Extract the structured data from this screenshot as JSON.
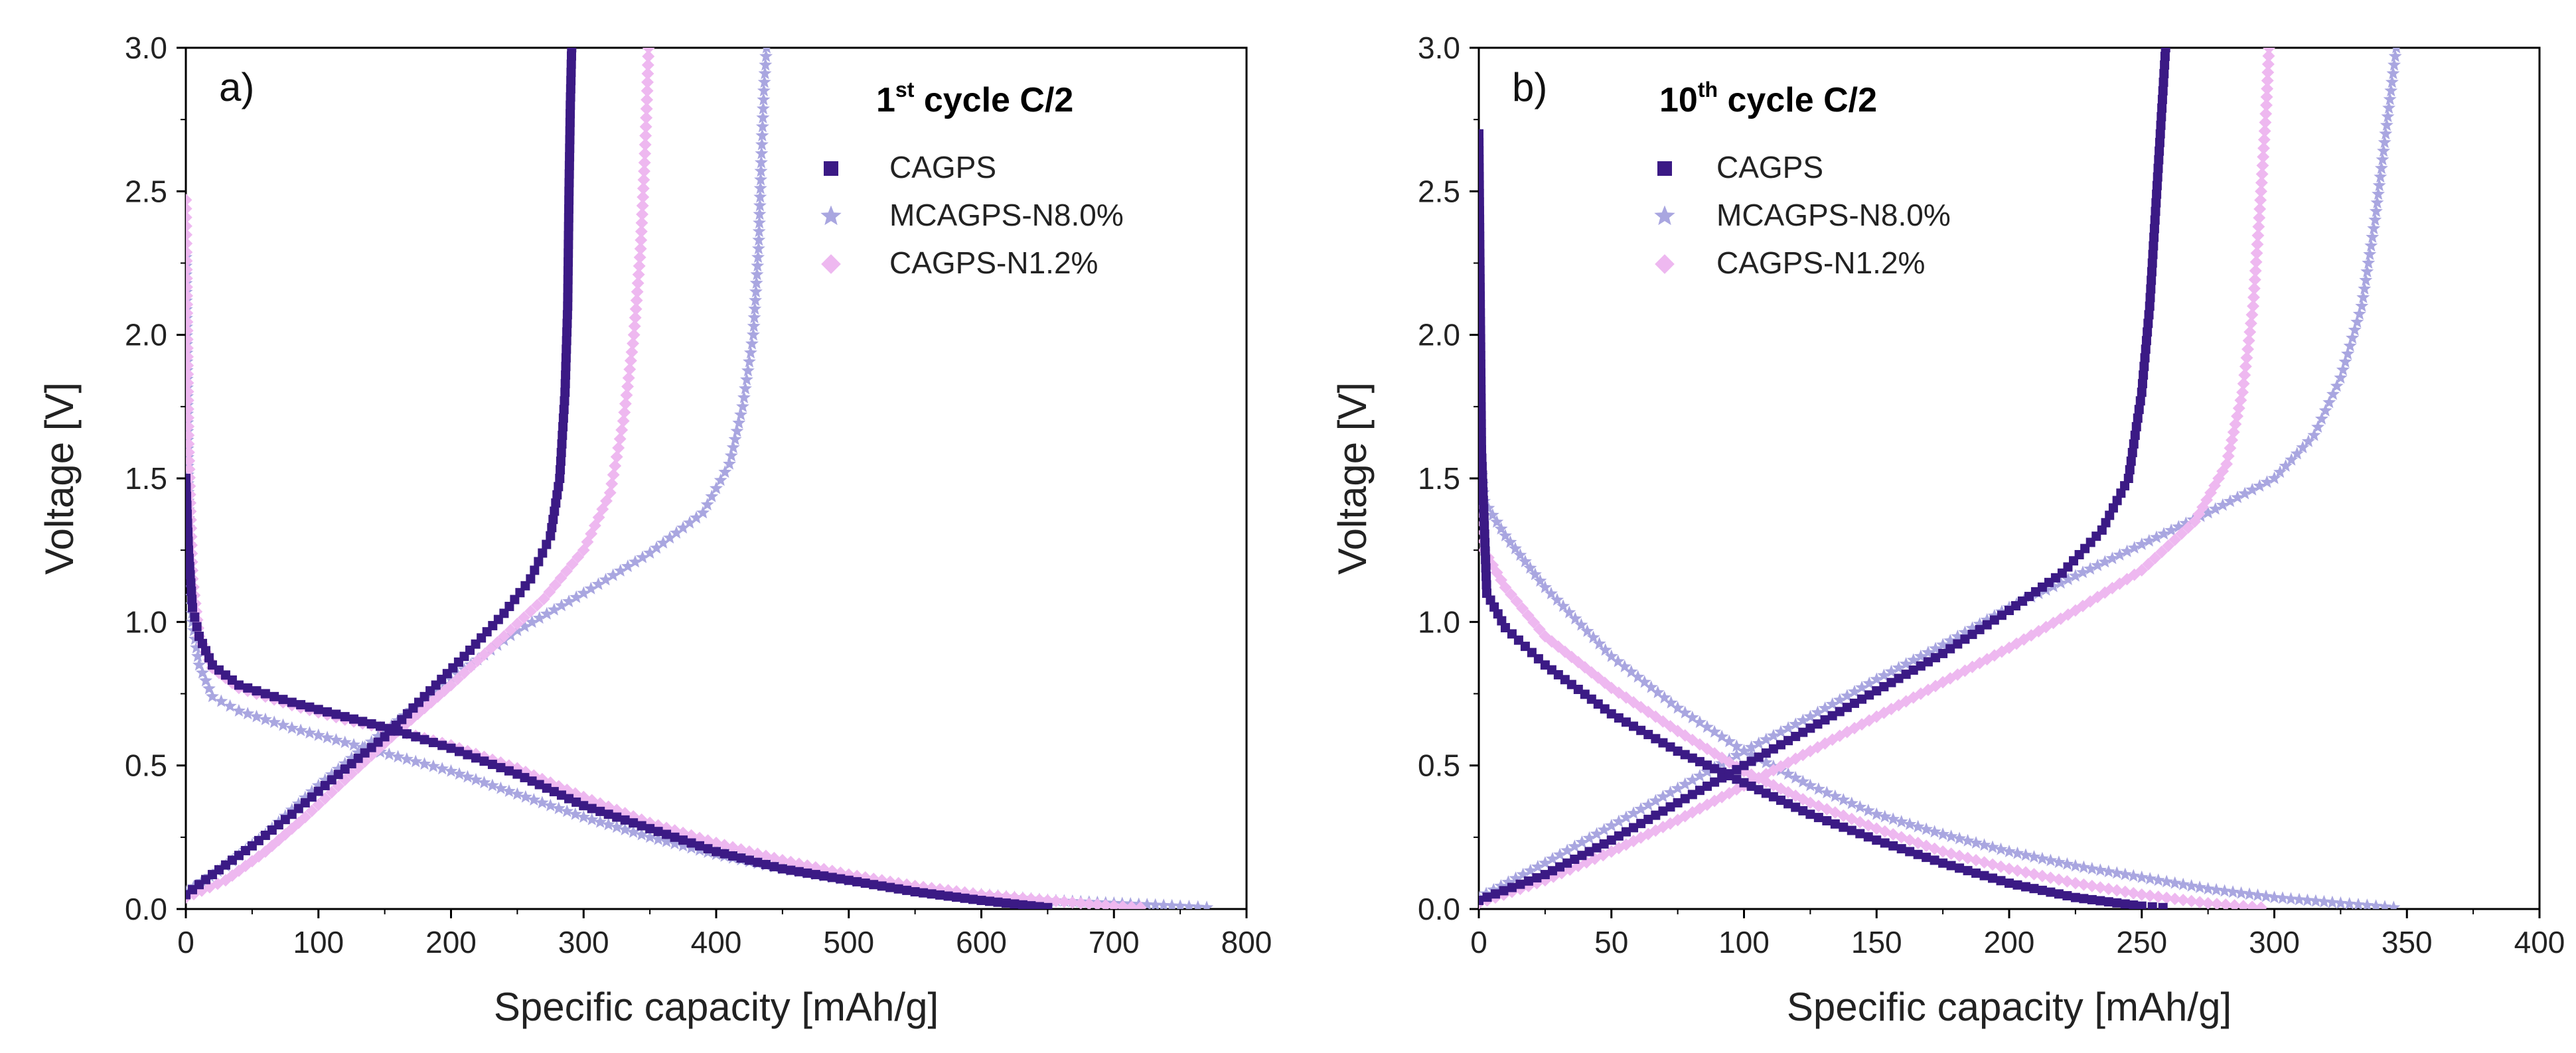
{
  "colors": {
    "CAGPS": "#3b1a85",
    "MCAGPS-N8.0%": "#a9a6e0",
    "CAGPS-N1.2%": "#eeb8f0",
    "axis": "#000000"
  },
  "chart_data": [
    {
      "type": "scatter",
      "panel": "a)",
      "title_prefix": "1",
      "title_sup": "st",
      "title_suffix": " cycle C/2",
      "xlabel": "Specific capacity [mAh/g]",
      "ylabel": "Voltage [V]",
      "xlim": [
        0,
        800
      ],
      "ylim": [
        0,
        3.0
      ],
      "xticks": [
        0,
        100,
        200,
        300,
        400,
        500,
        600,
        700,
        800
      ],
      "yticks": [
        0.0,
        0.5,
        1.0,
        1.5,
        2.0,
        2.5,
        3.0
      ],
      "legend_position": "top-right",
      "series": [
        {
          "name": "CAGPS",
          "marker": "square",
          "discharge": [
            [
              0,
              1.5
            ],
            [
              2,
              1.25
            ],
            [
              5,
              1.05
            ],
            [
              10,
              0.95
            ],
            [
              20,
              0.85
            ],
            [
              40,
              0.78
            ],
            [
              80,
              0.72
            ],
            [
              120,
              0.67
            ],
            [
              160,
              0.62
            ],
            [
              200,
              0.56
            ],
            [
              250,
              0.47
            ],
            [
              300,
              0.36
            ],
            [
              350,
              0.28
            ],
            [
              400,
              0.2
            ],
            [
              450,
              0.14
            ],
            [
              500,
              0.1
            ],
            [
              550,
              0.06
            ],
            [
              600,
              0.03
            ],
            [
              650,
              0.005
            ]
          ],
          "charge": [
            [
              0,
              0.05
            ],
            [
              20,
              0.12
            ],
            [
              50,
              0.22
            ],
            [
              80,
              0.33
            ],
            [
              110,
              0.45
            ],
            [
              150,
              0.6
            ],
            [
              180,
              0.74
            ],
            [
              210,
              0.88
            ],
            [
              240,
              1.03
            ],
            [
              260,
              1.15
            ],
            [
              275,
              1.3
            ],
            [
              282,
              1.5
            ],
            [
              286,
              1.8
            ],
            [
              288,
              2.1
            ],
            [
              289,
              2.5
            ],
            [
              290,
              2.8
            ],
            [
              291,
              3.0
            ]
          ]
        },
        {
          "name": "MCAGPS-N8.0%",
          "marker": "star",
          "discharge": [
            [
              0,
              2.27
            ],
            [
              2,
              1.3
            ],
            [
              5,
              1.0
            ],
            [
              10,
              0.85
            ],
            [
              20,
              0.74
            ],
            [
              40,
              0.69
            ],
            [
              80,
              0.63
            ],
            [
              120,
              0.58
            ],
            [
              160,
              0.53
            ],
            [
              200,
              0.48
            ],
            [
              250,
              0.4
            ],
            [
              300,
              0.32
            ],
            [
              350,
              0.25
            ],
            [
              400,
              0.19
            ],
            [
              450,
              0.14
            ],
            [
              500,
              0.1
            ],
            [
              550,
              0.07
            ],
            [
              600,
              0.05
            ],
            [
              650,
              0.03
            ],
            [
              700,
              0.02
            ],
            [
              750,
              0.01
            ],
            [
              770,
              0.005
            ]
          ],
          "charge": [
            [
              0,
              0.06
            ],
            [
              30,
              0.15
            ],
            [
              60,
              0.26
            ],
            [
              100,
              0.43
            ],
            [
              150,
              0.62
            ],
            [
              200,
              0.8
            ],
            [
              250,
              0.97
            ],
            [
              300,
              1.1
            ],
            [
              350,
              1.24
            ],
            [
              390,
              1.38
            ],
            [
              410,
              1.55
            ],
            [
              420,
              1.75
            ],
            [
              428,
              2.0
            ],
            [
              432,
              2.3
            ],
            [
              434,
              2.6
            ],
            [
              436,
              2.85
            ],
            [
              438,
              3.0
            ]
          ]
        },
        {
          "name": "CAGPS-N1.2%",
          "marker": "diamond",
          "discharge": [
            [
              0,
              2.47
            ],
            [
              2,
              1.62
            ],
            [
              5,
              1.15
            ],
            [
              10,
              0.95
            ],
            [
              20,
              0.84
            ],
            [
              40,
              0.77
            ],
            [
              80,
              0.71
            ],
            [
              120,
              0.66
            ],
            [
              160,
              0.62
            ],
            [
              200,
              0.57
            ],
            [
              250,
              0.49
            ],
            [
              300,
              0.39
            ],
            [
              350,
              0.3
            ],
            [
              400,
              0.23
            ],
            [
              450,
              0.17
            ],
            [
              500,
              0.12
            ],
            [
              550,
              0.08
            ],
            [
              600,
              0.05
            ],
            [
              650,
              0.03
            ],
            [
              700,
              0.01
            ],
            [
              720,
              0.005
            ]
          ],
          "charge": [
            [
              0,
              0.04
            ],
            [
              30,
              0.1
            ],
            [
              60,
              0.2
            ],
            [
              90,
              0.32
            ],
            [
              120,
              0.45
            ],
            [
              160,
              0.62
            ],
            [
              200,
              0.78
            ],
            [
              240,
              0.95
            ],
            [
              270,
              1.08
            ],
            [
              300,
              1.25
            ],
            [
              320,
              1.45
            ],
            [
              330,
              1.7
            ],
            [
              338,
              2.0
            ],
            [
              343,
              2.3
            ],
            [
              346,
              2.6
            ],
            [
              348,
              2.85
            ],
            [
              349,
              3.0
            ]
          ]
        }
      ]
    },
    {
      "type": "scatter",
      "panel": "b)",
      "title_prefix": "10",
      "title_sup": "th",
      "title_suffix": " cycle C/2",
      "xlabel": "Specific capacity [mAh/g]",
      "ylabel": "Voltage [V]",
      "xlim": [
        0,
        400
      ],
      "ylim": [
        0,
        3.0
      ],
      "xticks": [
        0,
        50,
        100,
        150,
        200,
        250,
        300,
        350,
        400
      ],
      "yticks": [
        0.0,
        0.5,
        1.0,
        1.5,
        2.0,
        2.5,
        3.0
      ],
      "legend_position": "top-left",
      "series": [
        {
          "name": "CAGPS",
          "marker": "square",
          "discharge": [
            [
              0,
              2.7
            ],
            [
              1,
              1.6
            ],
            [
              3,
              1.1
            ],
            [
              10,
              0.98
            ],
            [
              25,
              0.85
            ],
            [
              50,
              0.68
            ],
            [
              75,
              0.55
            ],
            [
              100,
              0.44
            ],
            [
              125,
              0.33
            ],
            [
              150,
              0.24
            ],
            [
              175,
              0.16
            ],
            [
              200,
              0.09
            ],
            [
              225,
              0.04
            ],
            [
              250,
              0.01
            ],
            [
              258,
              0.005
            ]
          ],
          "charge": [
            [
              0,
              0.03
            ],
            [
              25,
              0.12
            ],
            [
              50,
              0.24
            ],
            [
              75,
              0.37
            ],
            [
              100,
              0.5
            ],
            [
              125,
              0.63
            ],
            [
              150,
              0.76
            ],
            [
              175,
              0.89
            ],
            [
              200,
              1.04
            ],
            [
              220,
              1.17
            ],
            [
              235,
              1.32
            ],
            [
              245,
              1.5
            ],
            [
              250,
              1.8
            ],
            [
              253,
              2.1
            ],
            [
              255,
              2.4
            ],
            [
              257,
              2.7
            ],
            [
              259,
              3.0
            ]
          ]
        },
        {
          "name": "MCAGPS-N8.0%",
          "marker": "star",
          "discharge": [
            [
              0,
              1.6
            ],
            [
              2,
              1.42
            ],
            [
              10,
              1.3
            ],
            [
              25,
              1.12
            ],
            [
              50,
              0.88
            ],
            [
              75,
              0.7
            ],
            [
              100,
              0.55
            ],
            [
              125,
              0.43
            ],
            [
              150,
              0.33
            ],
            [
              175,
              0.26
            ],
            [
              200,
              0.2
            ],
            [
              225,
              0.15
            ],
            [
              250,
              0.11
            ],
            [
              275,
              0.07
            ],
            [
              300,
              0.04
            ],
            [
              325,
              0.02
            ],
            [
              345,
              0.005
            ]
          ],
          "charge": [
            [
              0,
              0.04
            ],
            [
              25,
              0.16
            ],
            [
              50,
              0.29
            ],
            [
              75,
              0.42
            ],
            [
              100,
              0.55
            ],
            [
              125,
              0.67
            ],
            [
              150,
              0.8
            ],
            [
              175,
              0.92
            ],
            [
              200,
              1.05
            ],
            [
              225,
              1.16
            ],
            [
              250,
              1.27
            ],
            [
              275,
              1.38
            ],
            [
              300,
              1.5
            ],
            [
              315,
              1.65
            ],
            [
              325,
              1.85
            ],
            [
              333,
              2.1
            ],
            [
              338,
              2.4
            ],
            [
              342,
              2.7
            ],
            [
              346,
              3.0
            ]
          ]
        },
        {
          "name": "CAGPS-N1.2%",
          "marker": "diamond",
          "discharge": [
            [
              0,
              1.65
            ],
            [
              2,
              1.25
            ],
            [
              10,
              1.12
            ],
            [
              25,
              0.95
            ],
            [
              50,
              0.77
            ],
            [
              75,
              0.62
            ],
            [
              100,
              0.48
            ],
            [
              125,
              0.37
            ],
            [
              150,
              0.28
            ],
            [
              175,
              0.2
            ],
            [
              200,
              0.14
            ],
            [
              225,
              0.09
            ],
            [
              250,
              0.05
            ],
            [
              275,
              0.02
            ],
            [
              295,
              0.005
            ]
          ],
          "charge": [
            [
              0,
              0.02
            ],
            [
              25,
              0.1
            ],
            [
              50,
              0.2
            ],
            [
              75,
              0.31
            ],
            [
              100,
              0.43
            ],
            [
              125,
              0.55
            ],
            [
              150,
              0.67
            ],
            [
              175,
              0.79
            ],
            [
              200,
              0.91
            ],
            [
              225,
              1.04
            ],
            [
              250,
              1.18
            ],
            [
              270,
              1.35
            ],
            [
              282,
              1.55
            ],
            [
              288,
              1.8
            ],
            [
              292,
              2.1
            ],
            [
              295,
              2.5
            ],
            [
              297,
              2.8
            ],
            [
              298,
              3.0
            ]
          ]
        }
      ]
    }
  ]
}
